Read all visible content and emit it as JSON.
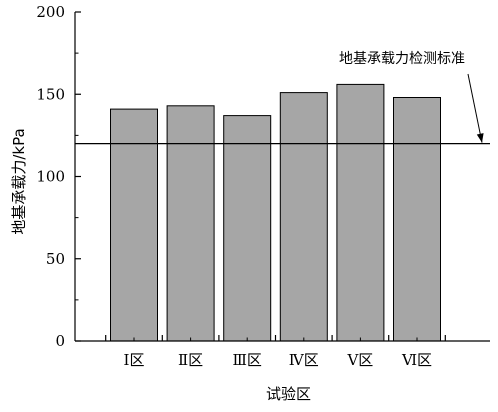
{
  "chart_data": {
    "type": "bar",
    "categories": [
      "Ⅰ区",
      "Ⅱ区",
      "Ⅲ区",
      "Ⅳ区",
      "Ⅴ区",
      "Ⅵ区"
    ],
    "values": [
      141,
      143,
      137,
      151,
      156,
      148
    ],
    "xlabel": "试验区",
    "ylabel": "地基承载力/kPa",
    "ylim": [
      0,
      200
    ],
    "yticks": [
      0,
      50,
      100,
      150,
      200
    ],
    "reference_line": {
      "value": 120,
      "label": "地基承载力检测标准"
    },
    "bar_color": "#a6a6a6",
    "grid": false,
    "legend": "none"
  }
}
